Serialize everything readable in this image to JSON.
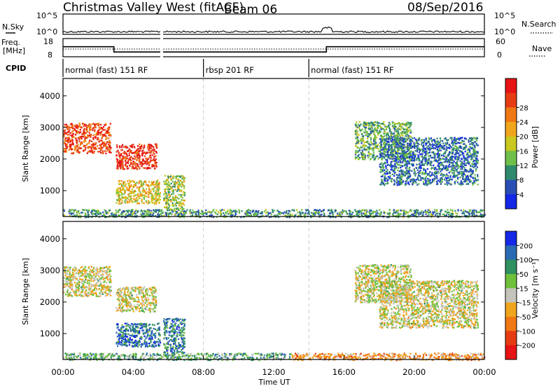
{
  "header": {
    "title": "Christmas Valley West (fitACF)",
    "beam": "Beam 06",
    "date": "08/Sep/2016"
  },
  "colors": {
    "frame": "#000000",
    "grid_dash": "#bbbbbb",
    "gs_gray": "#c4c4bc"
  },
  "chart_data": [
    {
      "type": "line",
      "panel": "noise",
      "left_label": "N.Sky",
      "right_label": "N.Search",
      "yticks_left": [
        "10^5",
        "10^0"
      ],
      "yticks_right": [
        "10^5",
        "10^0"
      ]
    },
    {
      "type": "line",
      "panel": "frequency",
      "left_label_lines": [
        "Freq.",
        "[MHz]"
      ],
      "right_label": "Nave",
      "yticks_left": [
        18,
        8
      ],
      "yticks_right": [
        60,
        0
      ],
      "ylim": [
        8,
        18
      ],
      "freq_steps": [
        {
          "t_start": 0.0,
          "t_end": 2.9,
          "mhz": 13.5
        },
        {
          "t_start": 2.9,
          "t_end": 15.0,
          "mhz": 10.6
        },
        {
          "t_start": 15.0,
          "t_end": 24.0,
          "mhz": 13.5
        }
      ]
    },
    {
      "type": "table",
      "panel": "cpid",
      "label": "CPID",
      "segments": [
        {
          "t_start": 0.0,
          "text": "normal (fast) 151 RF"
        },
        {
          "t_start": 8.0,
          "text": "rbsp 201 RF"
        },
        {
          "t_start": 14.0,
          "text": "normal (fast) 151 RF"
        }
      ]
    },
    {
      "type": "heatmap",
      "panel": "power",
      "ylabel": "Slant Range [km]",
      "xlabel": "",
      "yticks": [
        1000,
        2000,
        3000,
        4000
      ],
      "ylim": [
        180,
        4550
      ],
      "xlim": [
        0,
        24
      ],
      "colorbar_label": "Power [dB]",
      "colorbar_ticks": [
        "4",
        "8",
        "12",
        "16",
        "20",
        "24",
        "28"
      ],
      "colorbar_colors": [
        "#1428e6",
        "#2a4fb4",
        "#2f8a6e",
        "#6fbf4a",
        "#c8c81e",
        "#f0a51e",
        "#f07814",
        "#e63c14",
        "#e61414"
      ],
      "patches": [
        {
          "t0": 0.0,
          "t1": 2.7,
          "r0": 2200,
          "r1": 3150,
          "level": 0.82
        },
        {
          "t0": 3.0,
          "t1": 5.3,
          "r0": 1700,
          "r1": 2500,
          "level": 0.88
        },
        {
          "t0": 3.0,
          "t1": 5.5,
          "r0": 600,
          "r1": 1350,
          "level": 0.55
        },
        {
          "t0": 5.7,
          "t1": 6.9,
          "r0": 400,
          "r1": 1500,
          "level": 0.45
        },
        {
          "t0": 16.6,
          "t1": 19.8,
          "r0": 2000,
          "r1": 3200,
          "level": 0.35
        },
        {
          "t0": 18.0,
          "t1": 23.6,
          "r0": 1200,
          "r1": 2700,
          "level": 0.22
        },
        {
          "t0": 0.0,
          "t1": 24.0,
          "r0": 180,
          "r1": 420,
          "level": 0.3
        }
      ]
    },
    {
      "type": "heatmap",
      "panel": "velocity",
      "ylabel": "Slant Range [km]",
      "xlabel": "Time UT",
      "xticks": [
        "00:00",
        "04:00",
        "08:00",
        "12:00",
        "16:00",
        "20:00",
        "00:00"
      ],
      "yticks": [
        1000,
        2000,
        3000,
        4000
      ],
      "ylim": [
        180,
        4550
      ],
      "xlim": [
        0,
        24
      ],
      "colorbar_label": "Velocity [m s⁻¹]",
      "colorbar_ticks": [
        "200",
        "100",
        "50",
        "15",
        "-15",
        "-50",
        "-100",
        "-200"
      ],
      "colorbar_colors": [
        "#1428e6",
        "#2a6ab4",
        "#2f9060",
        "#6fc03a",
        "#c4c4bc",
        "#f0a51e",
        "#f07814",
        "#e63c14",
        "#e61414"
      ],
      "patches": [
        {
          "t0": 0.0,
          "t1": 2.7,
          "r0": 2200,
          "r1": 3150,
          "level": 0.5
        },
        {
          "t0": 3.0,
          "t1": 5.3,
          "r0": 1700,
          "r1": 2500,
          "level": 0.5
        },
        {
          "t0": 3.0,
          "t1": 5.5,
          "r0": 600,
          "r1": 1350,
          "level": 0.8
        },
        {
          "t0": 5.7,
          "t1": 6.9,
          "r0": 400,
          "r1": 1500,
          "level": 0.78
        },
        {
          "t0": 16.6,
          "t1": 19.8,
          "r0": 2000,
          "r1": 3200,
          "level": 0.5
        },
        {
          "t0": 18.0,
          "t1": 23.6,
          "r0": 1200,
          "r1": 2700,
          "level": 0.5
        },
        {
          "t0": 0.0,
          "t1": 13.0,
          "r0": 180,
          "r1": 400,
          "level": 0.65
        },
        {
          "t0": 13.0,
          "t1": 24.0,
          "r0": 180,
          "r1": 400,
          "level": 0.35
        }
      ]
    }
  ]
}
